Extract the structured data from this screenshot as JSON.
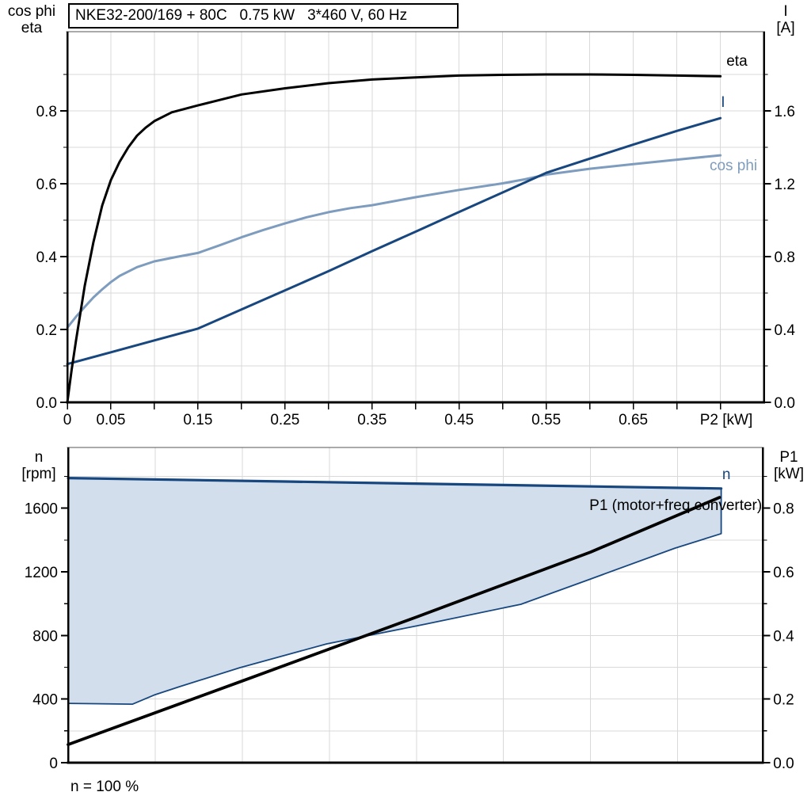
{
  "style": {
    "background": "#FFFFFF",
    "grid": "#D9D9D9",
    "axis": "#000000",
    "frame_top": "#555555",
    "dark_blue": "#17477E",
    "light_blue": "#7E9CBE",
    "area_fill": "#D2DEEB"
  },
  "chart_data": [
    {
      "id": "performance",
      "type": "line",
      "title": "NKE32-200/169 + 80C   0.75 kW   3*460 V, 60 Hz",
      "x_axis": {
        "label": "P2 [kW]",
        "label_position": 0.757,
        "min": 0,
        "max": 0.8,
        "tick_values": [
          0,
          0.05,
          0.1,
          0.15,
          0.2,
          0.25,
          0.3,
          0.35,
          0.4,
          0.45,
          0.5,
          0.55,
          0.6,
          0.65,
          0.7,
          0.75
        ],
        "tick_labels": [
          {
            "value": 0,
            "text": "0"
          },
          {
            "value": 0.05,
            "text": "0.05"
          },
          {
            "value": 0.15,
            "text": "0.15"
          },
          {
            "value": 0.25,
            "text": "0.25"
          },
          {
            "value": 0.35,
            "text": "0.35"
          },
          {
            "value": 0.45,
            "text": "0.45"
          },
          {
            "value": 0.55,
            "text": "0.55"
          },
          {
            "value": 0.65,
            "text": "0.65"
          }
        ],
        "grid_values": [
          0.05,
          0.1,
          0.15,
          0.2,
          0.25,
          0.3,
          0.35,
          0.4,
          0.45,
          0.5,
          0.55,
          0.6,
          0.65,
          0.7,
          0.75
        ]
      },
      "left_axis": {
        "name_line1": "cos phi",
        "name_line2": "eta",
        "min": 0,
        "max": 1.017,
        "tick_values": [
          0,
          0.2,
          0.4,
          0.6,
          0.8
        ],
        "tick_labels": [
          "0.0",
          "0.2",
          "0.4",
          "0.6",
          "0.8"
        ],
        "minor_tick_values": [
          0.1,
          0.3,
          0.5,
          0.7,
          0.9
        ],
        "grid_values": [
          0.1,
          0.2,
          0.3,
          0.4,
          0.5,
          0.6,
          0.7,
          0.8,
          0.9
        ]
      },
      "right_axis": {
        "name_line1": "I",
        "name_line2": "[A]",
        "min": 0,
        "max": 2.035,
        "tick_values": [
          0,
          0.4,
          0.8,
          1.2,
          1.6
        ],
        "tick_labels": [
          "0.0",
          "0.4",
          "0.8",
          "1.2",
          "1.6"
        ],
        "minor_tick_values": [
          0.2,
          0.6,
          1.0,
          1.4,
          1.8
        ]
      },
      "series": [
        {
          "id": "cos-phi",
          "name": "cos phi",
          "axis": "left",
          "color": "#7E9CBE",
          "width": 3,
          "label": {
            "text": "cos phi",
            "x": 0.765,
            "y": 0.652,
            "anchor": "middle"
          },
          "points": [
            [
              0,
              0.205
            ],
            [
              0.01,
              0.235
            ],
            [
              0.02,
              0.262
            ],
            [
              0.03,
              0.288
            ],
            [
              0.04,
              0.31
            ],
            [
              0.05,
              0.33
            ],
            [
              0.06,
              0.347
            ],
            [
              0.08,
              0.371
            ],
            [
              0.1,
              0.387
            ],
            [
              0.125,
              0.399
            ],
            [
              0.15,
              0.41
            ],
            [
              0.175,
              0.431
            ],
            [
              0.2,
              0.453
            ],
            [
              0.225,
              0.473
            ],
            [
              0.25,
              0.491
            ],
            [
              0.275,
              0.508
            ],
            [
              0.3,
              0.522
            ],
            [
              0.325,
              0.533
            ],
            [
              0.35,
              0.541
            ],
            [
              0.4,
              0.563
            ],
            [
              0.45,
              0.583
            ],
            [
              0.5,
              0.601
            ],
            [
              0.525,
              0.612
            ],
            [
              0.55,
              0.625
            ],
            [
              0.6,
              0.641
            ],
            [
              0.65,
              0.654
            ],
            [
              0.7,
              0.666
            ],
            [
              0.75,
              0.678
            ]
          ]
        },
        {
          "id": "current",
          "name": "I",
          "axis": "right",
          "color": "#17477E",
          "width": 3,
          "label": {
            "text": "I",
            "x": 0.753,
            "y": 1.652,
            "anchor": "middle"
          },
          "points": [
            [
              0,
              0.21
            ],
            [
              0.05,
              0.275
            ],
            [
              0.1,
              0.34
            ],
            [
              0.15,
              0.405
            ],
            [
              0.2,
              0.51
            ],
            [
              0.25,
              0.615
            ],
            [
              0.3,
              0.72
            ],
            [
              0.35,
              0.83
            ],
            [
              0.4,
              0.937
            ],
            [
              0.45,
              1.045
            ],
            [
              0.5,
              1.152
            ],
            [
              0.55,
              1.26
            ],
            [
              0.6,
              1.338
            ],
            [
              0.65,
              1.415
            ],
            [
              0.7,
              1.49
            ],
            [
              0.75,
              1.56
            ]
          ]
        },
        {
          "id": "eta",
          "name": "eta",
          "axis": "left",
          "color": "#000000",
          "width": 3,
          "label": {
            "text": "eta",
            "x": 0.769,
            "y": 0.939,
            "anchor": "middle"
          },
          "points": [
            [
              0,
              0
            ],
            [
              0.005,
              0.09
            ],
            [
              0.01,
              0.17
            ],
            [
              0.02,
              0.32
            ],
            [
              0.03,
              0.44
            ],
            [
              0.04,
              0.54
            ],
            [
              0.05,
              0.61
            ],
            [
              0.06,
              0.66
            ],
            [
              0.07,
              0.7
            ],
            [
              0.08,
              0.732
            ],
            [
              0.09,
              0.754
            ],
            [
              0.1,
              0.772
            ],
            [
              0.12,
              0.796
            ],
            [
              0.15,
              0.815
            ],
            [
              0.2,
              0.845
            ],
            [
              0.25,
              0.862
            ],
            [
              0.3,
              0.876
            ],
            [
              0.35,
              0.886
            ],
            [
              0.4,
              0.892
            ],
            [
              0.45,
              0.897
            ],
            [
              0.5,
              0.899
            ],
            [
              0.55,
              0.9
            ],
            [
              0.6,
              0.9
            ],
            [
              0.65,
              0.899
            ],
            [
              0.7,
              0.897
            ],
            [
              0.75,
              0.895
            ]
          ]
        }
      ]
    },
    {
      "id": "speed-power",
      "type": "area+line",
      "footnote": "n = 100 %",
      "x_axis": {
        "min": 0,
        "max": 0.798,
        "grid_values": [
          0.1,
          0.2,
          0.3,
          0.4,
          0.5,
          0.6,
          0.7
        ]
      },
      "left_axis": {
        "name_line1": "n",
        "name_line2": "[rpm]",
        "min": 0,
        "max": 1982,
        "tick_values": [
          0,
          400,
          800,
          1200,
          1600
        ],
        "tick_labels": [
          "0",
          "400",
          "800",
          "1200",
          "1600"
        ],
        "minor_tick_values": [
          200,
          600,
          1000,
          1400,
          1800
        ],
        "grid_values": [
          200,
          400,
          600,
          800,
          1000,
          1200,
          1400,
          1600,
          1800
        ]
      },
      "right_axis": {
        "name_line1": "P1",
        "name_line2": "[kW]",
        "min": 0,
        "max": 0.991,
        "tick_values": [
          0,
          0.2,
          0.4,
          0.6,
          0.8
        ],
        "tick_labels": [
          "0.0",
          "0.2",
          "0.4",
          "0.6",
          "0.8"
        ],
        "minor_tick_values": [
          0.1,
          0.3,
          0.5,
          0.7,
          0.9
        ]
      },
      "series": [
        {
          "id": "n-range",
          "name": "n",
          "type": "area",
          "axis": "left",
          "color": "#17477E",
          "fill": "#D2DEEB",
          "width": 3.2,
          "label": {
            "text": "n",
            "x": 0.756,
            "y": 1818,
            "anchor": "middle"
          },
          "upper": [
            [
              0,
              1790
            ],
            [
              0.25,
              1768
            ],
            [
              0.5,
              1746
            ],
            [
              0.75,
              1724
            ]
          ],
          "lower": [
            [
              0,
              373
            ],
            [
              0.074,
              368
            ],
            [
              0.1,
              428
            ],
            [
              0.128,
              478
            ],
            [
              0.197,
              597
            ],
            [
              0.297,
              747
            ],
            [
              0.41,
              871
            ],
            [
              0.52,
              996
            ],
            [
              0.595,
              1145
            ],
            [
              0.697,
              1349
            ],
            [
              0.75,
              1440
            ]
          ]
        },
        {
          "id": "p1",
          "name": "P1 (motor+freq.converter)",
          "type": "line",
          "axis": "right",
          "color": "#000000",
          "width": 3.8,
          "label": {
            "text": "P1 (motor+freq.converter)",
            "x": 0.797,
            "y": 0.8116,
            "anchor": "end"
          },
          "points": [
            [
              0,
              0.057
            ],
            [
              0.2,
              0.257
            ],
            [
              0.4,
              0.458
            ],
            [
              0.6,
              0.662
            ],
            [
              0.748,
              0.834
            ]
          ]
        }
      ]
    }
  ]
}
